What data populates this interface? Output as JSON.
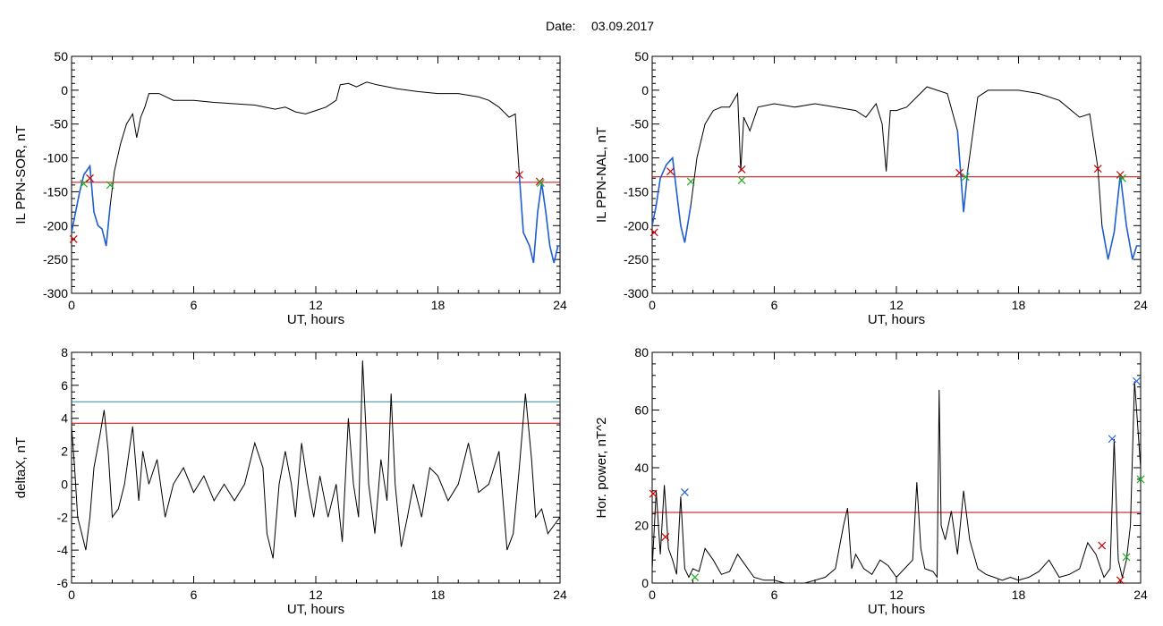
{
  "header": {
    "date_label": "Date:",
    "date_value": "03.09.2017"
  },
  "colors": {
    "data": "#000000",
    "threshold": "#cc0000",
    "threshold2": "#2e8b9a",
    "highlight": "#1f5fd0",
    "marker_red": "#cc0000",
    "marker_green": "#22aa22",
    "marker_blue": "#1f5fd0"
  },
  "chart_data": [
    {
      "type": "line",
      "ylabel": "IL PPN-SOR, nT",
      "xlabel": "UT, hours",
      "xlim": [
        0,
        24
      ],
      "ylim": [
        -300,
        50
      ],
      "xticks": [
        "0",
        "6",
        "12",
        "18",
        "24"
      ],
      "yticks": [
        "50",
        "0",
        "-50",
        "-100",
        "-150",
        "-200",
        "-250",
        "-300"
      ],
      "ytick_values": [
        50,
        0,
        -50,
        -100,
        -150,
        -200,
        -250,
        -300
      ],
      "threshold": -136,
      "highlight_ranges": [
        [
          0,
          2.0
        ],
        [
          22.0,
          24
        ]
      ],
      "series": [
        {
          "x": [
            0,
            0.2,
            0.4,
            0.6,
            0.9,
            1.1,
            1.3,
            1.5,
            1.7,
            1.9,
            2.1,
            2.4,
            2.7,
            3.0,
            3.2,
            3.4,
            3.6,
            3.8,
            4.3,
            5,
            6,
            7,
            8,
            9,
            10,
            10.5,
            11,
            11.5,
            12,
            12.5,
            13,
            13.2,
            13.6,
            14,
            14.5,
            15,
            16,
            17,
            18,
            19,
            20,
            20.5,
            21,
            21.5,
            21.8,
            22.0,
            22.2,
            22.5,
            22.7,
            22.9,
            23.1,
            23.3,
            23.5,
            23.7,
            23.9,
            24
          ],
          "y": [
            -210,
            -180,
            -150,
            -125,
            -112,
            -180,
            -200,
            -205,
            -230,
            -170,
            -120,
            -80,
            -50,
            -35,
            -70,
            -40,
            -25,
            -5,
            -5,
            -15,
            -15,
            -18,
            -20,
            -22,
            -28,
            -25,
            -32,
            -35,
            -30,
            -25,
            -15,
            8,
            10,
            5,
            12,
            8,
            2,
            -2,
            -5,
            -5,
            -10,
            -15,
            -25,
            -40,
            -35,
            -125,
            -210,
            -230,
            -255,
            -180,
            -137,
            -180,
            -230,
            -255,
            -230,
            -230
          ]
        }
      ],
      "markers": [
        {
          "x": 0.1,
          "y": -220,
          "color": "red"
        },
        {
          "x": 0.6,
          "y": -138,
          "color": "green"
        },
        {
          "x": 0.9,
          "y": -130,
          "color": "red"
        },
        {
          "x": 1.9,
          "y": -140,
          "color": "green"
        },
        {
          "x": 22.0,
          "y": -125,
          "color": "red"
        },
        {
          "x": 23.0,
          "y": -135,
          "color": "red"
        },
        {
          "x": 23.05,
          "y": -137,
          "color": "green"
        }
      ]
    },
    {
      "type": "line",
      "ylabel": "IL PPN-NAL, nT",
      "xlabel": "UT, hours",
      "xlim": [
        0,
        24
      ],
      "ylim": [
        -300,
        50
      ],
      "xticks": [
        "0",
        "6",
        "12",
        "18",
        "24"
      ],
      "yticks": [
        "50",
        "0",
        "-50",
        "-100",
        "-150",
        "-200",
        "-250",
        "-300"
      ],
      "ytick_values": [
        50,
        0,
        -50,
        -100,
        -150,
        -200,
        -250,
        -300
      ],
      "threshold": -128,
      "highlight_ranges": [
        [
          0,
          2.0
        ],
        [
          15.0,
          15.5
        ],
        [
          22.0,
          24
        ]
      ],
      "series": [
        {
          "x": [
            0,
            0.2,
            0.4,
            0.7,
            1.0,
            1.2,
            1.4,
            1.6,
            1.9,
            2.2,
            2.6,
            3.0,
            3.4,
            3.8,
            4.2,
            4.35,
            4.5,
            4.8,
            5.2,
            6,
            7,
            8,
            9,
            10,
            10.5,
            11,
            11.3,
            11.5,
            11.7,
            12,
            12.5,
            13,
            13.5,
            14,
            14.5,
            15,
            15.15,
            15.3,
            15.5,
            16,
            16.5,
            17,
            18,
            19,
            20,
            21,
            21.5,
            21.9,
            22.1,
            22.4,
            22.7,
            23.0,
            23.3,
            23.6,
            23.8,
            24
          ],
          "y": [
            -200,
            -170,
            -130,
            -110,
            -100,
            -150,
            -200,
            -225,
            -170,
            -100,
            -50,
            -30,
            -25,
            -25,
            -5,
            -120,
            -40,
            -60,
            -25,
            -20,
            -25,
            -20,
            -25,
            -30,
            -40,
            -20,
            -50,
            -120,
            -30,
            -30,
            -25,
            -10,
            5,
            0,
            -5,
            -60,
            -120,
            -180,
            -120,
            -10,
            0,
            0,
            0,
            -5,
            -15,
            -40,
            -35,
            -115,
            -200,
            -250,
            -210,
            -125,
            -200,
            -250,
            -230,
            -230
          ]
        }
      ],
      "markers": [
        {
          "x": 0.1,
          "y": -210,
          "color": "red"
        },
        {
          "x": 0.9,
          "y": -120,
          "color": "red"
        },
        {
          "x": 1.9,
          "y": -135,
          "color": "green"
        },
        {
          "x": 4.4,
          "y": -117,
          "color": "red"
        },
        {
          "x": 4.4,
          "y": -133,
          "color": "green"
        },
        {
          "x": 15.1,
          "y": -122,
          "color": "red"
        },
        {
          "x": 15.4,
          "y": -128,
          "color": "green"
        },
        {
          "x": 21.9,
          "y": -116,
          "color": "red"
        },
        {
          "x": 23.0,
          "y": -125,
          "color": "red"
        },
        {
          "x": 23.1,
          "y": -130,
          "color": "green"
        }
      ]
    },
    {
      "type": "line",
      "ylabel": "deltaX, nT",
      "xlabel": "UT, hours",
      "xlim": [
        0,
        24
      ],
      "ylim": [
        -6,
        8
      ],
      "xticks": [
        "0",
        "6",
        "12",
        "18",
        "24"
      ],
      "yticks": [
        "8",
        "6",
        "4",
        "2",
        "0",
        "-2",
        "-4",
        "-6"
      ],
      "ytick_values": [
        8,
        6,
        4,
        2,
        0,
        -2,
        -4,
        -6
      ],
      "threshold": 3.7,
      "threshold2": 5.0,
      "series": [
        {
          "x": [
            0,
            0.15,
            0.3,
            0.5,
            0.7,
            0.9,
            1.1,
            1.4,
            1.6,
            1.8,
            2.0,
            2.3,
            2.6,
            3.0,
            3.3,
            3.5,
            3.8,
            4.2,
            4.6,
            5.0,
            5.5,
            6.0,
            6.5,
            7.0,
            7.5,
            8.0,
            8.5,
            9.0,
            9.4,
            9.6,
            9.9,
            10.2,
            10.5,
            10.8,
            11.0,
            11.3,
            11.6,
            11.9,
            12.2,
            12.6,
            13.0,
            13.3,
            13.6,
            13.85,
            14.1,
            14.3,
            14.6,
            14.9,
            15.2,
            15.5,
            15.7,
            15.9,
            16.2,
            16.5,
            16.8,
            17.2,
            17.6,
            18.0,
            18.5,
            19.0,
            19.5,
            20.0,
            20.5,
            21.0,
            21.4,
            21.7,
            22.0,
            22.3,
            22.6,
            22.8,
            23.1,
            23.4,
            23.7,
            24
          ],
          "y": [
            3.5,
            1,
            -2,
            -3,
            -4,
            -2,
            1,
            3,
            4.5,
            2,
            -2,
            -1.5,
            0,
            3.5,
            -1,
            2,
            0,
            1.5,
            -2,
            0,
            1,
            -0.5,
            0.5,
            -1,
            0,
            -1,
            0,
            2.5,
            1,
            -3,
            -4.5,
            0,
            2,
            0,
            -2,
            2.5,
            0,
            -2,
            0.5,
            -2,
            0,
            -3.5,
            4,
            0,
            -2,
            7.5,
            0,
            -3,
            1.5,
            -1,
            5.5,
            0,
            -3.8,
            -2,
            0,
            -2,
            1,
            0.5,
            -1,
            0,
            2.5,
            -0.5,
            0,
            2,
            -4,
            -3,
            1,
            5.5,
            1.5,
            -2,
            -1.5,
            -3,
            -2.5,
            -2
          ]
        }
      ],
      "markers": []
    },
    {
      "type": "line",
      "ylabel": "Hor. power, nT^2",
      "xlabel": "UT, hours",
      "xlim": [
        0,
        24
      ],
      "ylim": [
        0,
        80
      ],
      "xticks": [
        "0",
        "6",
        "12",
        "18",
        "24"
      ],
      "yticks": [
        "80",
        "60",
        "40",
        "20",
        "0"
      ],
      "ytick_values": [
        80,
        60,
        40,
        20,
        0
      ],
      "threshold": 24.5,
      "series": [
        {
          "x": [
            0,
            0.2,
            0.4,
            0.6,
            0.8,
            1.0,
            1.2,
            1.4,
            1.6,
            1.8,
            2.0,
            2.3,
            2.6,
            3.0,
            3.4,
            3.8,
            4.2,
            4.6,
            5.0,
            5.5,
            6.0,
            6.5,
            7.0,
            7.5,
            8.0,
            8.5,
            9.0,
            9.4,
            9.6,
            9.8,
            10.0,
            10.4,
            10.8,
            11.2,
            11.6,
            12.0,
            12.4,
            12.8,
            13.0,
            13.2,
            13.4,
            13.8,
            14.0,
            14.1,
            14.2,
            14.4,
            14.7,
            15.0,
            15.3,
            15.6,
            16.0,
            16.4,
            16.8,
            17.2,
            17.6,
            18.0,
            18.5,
            19.0,
            19.5,
            20.0,
            20.5,
            21.0,
            21.4,
            21.8,
            22.2,
            22.5,
            22.7,
            22.9,
            23.1,
            23.3,
            23.5,
            23.7,
            24
          ],
          "y": [
            5,
            32,
            10,
            34,
            12,
            8,
            3,
            30,
            5,
            2,
            5,
            4,
            12,
            8,
            3,
            4,
            10,
            6,
            2,
            1,
            1,
            0,
            0,
            0,
            1,
            2,
            5,
            20,
            26,
            5,
            10,
            5,
            3,
            8,
            6,
            2,
            5,
            8,
            35,
            12,
            5,
            4,
            2,
            67,
            20,
            15,
            25,
            10,
            32,
            15,
            5,
            3,
            2,
            1,
            2,
            1,
            2,
            4,
            8,
            2,
            3,
            5,
            14,
            10,
            2,
            5,
            50,
            8,
            2,
            8,
            20,
            70,
            40
          ]
        }
      ],
      "markers": [
        {
          "x": 0.05,
          "y": 31,
          "color": "red"
        },
        {
          "x": 0.65,
          "y": 16,
          "color": "red"
        },
        {
          "x": 1.6,
          "y": 31.5,
          "color": "blue"
        },
        {
          "x": 2.1,
          "y": 2,
          "color": "green"
        },
        {
          "x": 22.1,
          "y": 13,
          "color": "red"
        },
        {
          "x": 22.6,
          "y": 50,
          "color": "blue"
        },
        {
          "x": 23.0,
          "y": 1,
          "color": "red"
        },
        {
          "x": 23.3,
          "y": 9,
          "color": "green"
        },
        {
          "x": 23.8,
          "y": 70,
          "color": "blue"
        },
        {
          "x": 24.0,
          "y": 36,
          "color": "green"
        }
      ]
    }
  ]
}
